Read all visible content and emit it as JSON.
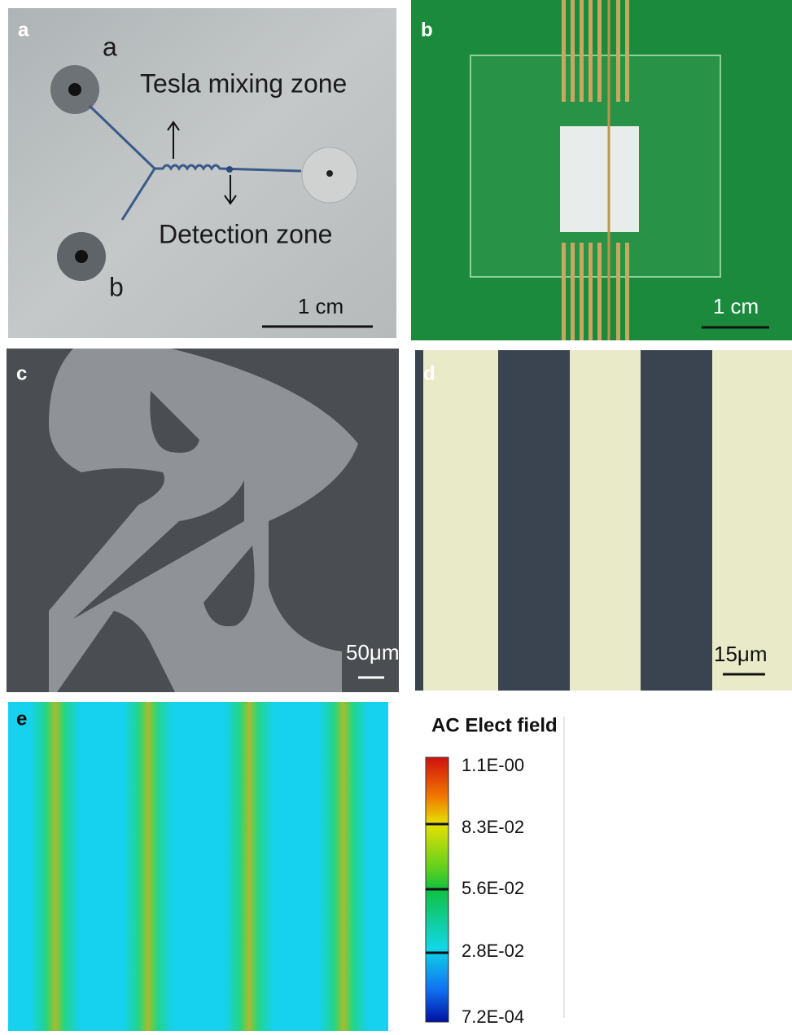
{
  "panels": [
    {
      "label": "a",
      "inlet_a": "a",
      "inlet_b": "b",
      "mixing": "Tesla mixing zone",
      "detection": "Detection zone",
      "scale": "1 cm"
    },
    {
      "label": "b",
      "scale": "1 cm"
    },
    {
      "label": "c",
      "scale": "50μm"
    },
    {
      "label": "d",
      "scale": "15μm"
    },
    {
      "label": "e",
      "colorbar_title": "AC Elect field",
      "colorbar_labels": [
        "1.1E-00",
        "8.3E-02",
        "5.6E-02",
        "2.8E-02",
        "7.2E-04"
      ]
    }
  ]
}
